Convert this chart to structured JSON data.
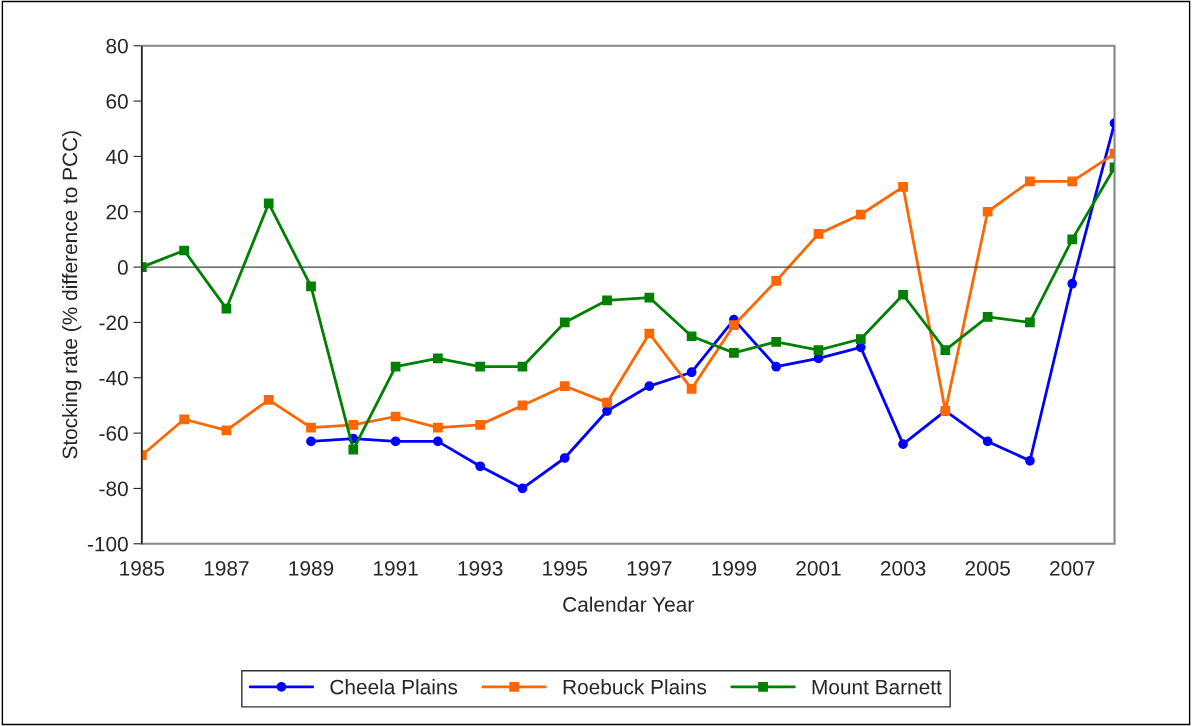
{
  "chart_data": {
    "type": "line",
    "xlabel": "Calendar Year",
    "ylabel": "Stocking rate (% difference to PCC)",
    "categories": [
      "1985",
      null,
      "1987",
      null,
      "1989",
      null,
      "1991",
      null,
      "1993",
      null,
      "1995",
      null,
      "1997",
      null,
      "1999",
      null,
      "2001",
      null,
      "2003",
      null,
      "2005",
      null,
      "2007",
      null
    ],
    "series": [
      {
        "name": "Cheela Plains",
        "color": "#0000ff",
        "marker": "circle",
        "values": [
          null,
          null,
          null,
          null,
          -63,
          -62,
          -63,
          -63,
          -72,
          -80,
          -69,
          -52,
          -43,
          -38,
          -19,
          -36,
          -33,
          -29,
          -64,
          -52,
          -63,
          -70,
          -6,
          52
        ]
      },
      {
        "name": "Roebuck Plains",
        "color": "#ff6600",
        "marker": "square",
        "values": [
          -68,
          -55,
          -59,
          -48,
          -58,
          -57,
          -54,
          -58,
          -57,
          -50,
          -43,
          -49,
          -24,
          -44,
          -21,
          -5,
          12,
          19,
          29,
          -52,
          20,
          31,
          31,
          41
        ]
      },
      {
        "name": "Mount Barnett",
        "color": "#008000",
        "marker": "square",
        "values": [
          0,
          6,
          -15,
          23,
          -7,
          -66,
          -36,
          -33,
          -36,
          -36,
          -20,
          -12,
          -11,
          -25,
          -31,
          -27,
          -30,
          -26,
          -10,
          -30,
          -18,
          -20,
          10,
          36
        ]
      }
    ],
    "ylim": [
      -100,
      80
    ],
    "yticks": [
      -100,
      -80,
      -60,
      -40,
      -20,
      0,
      20,
      40,
      60,
      80
    ],
    "legend": "bottom",
    "line_style": "solid"
  }
}
